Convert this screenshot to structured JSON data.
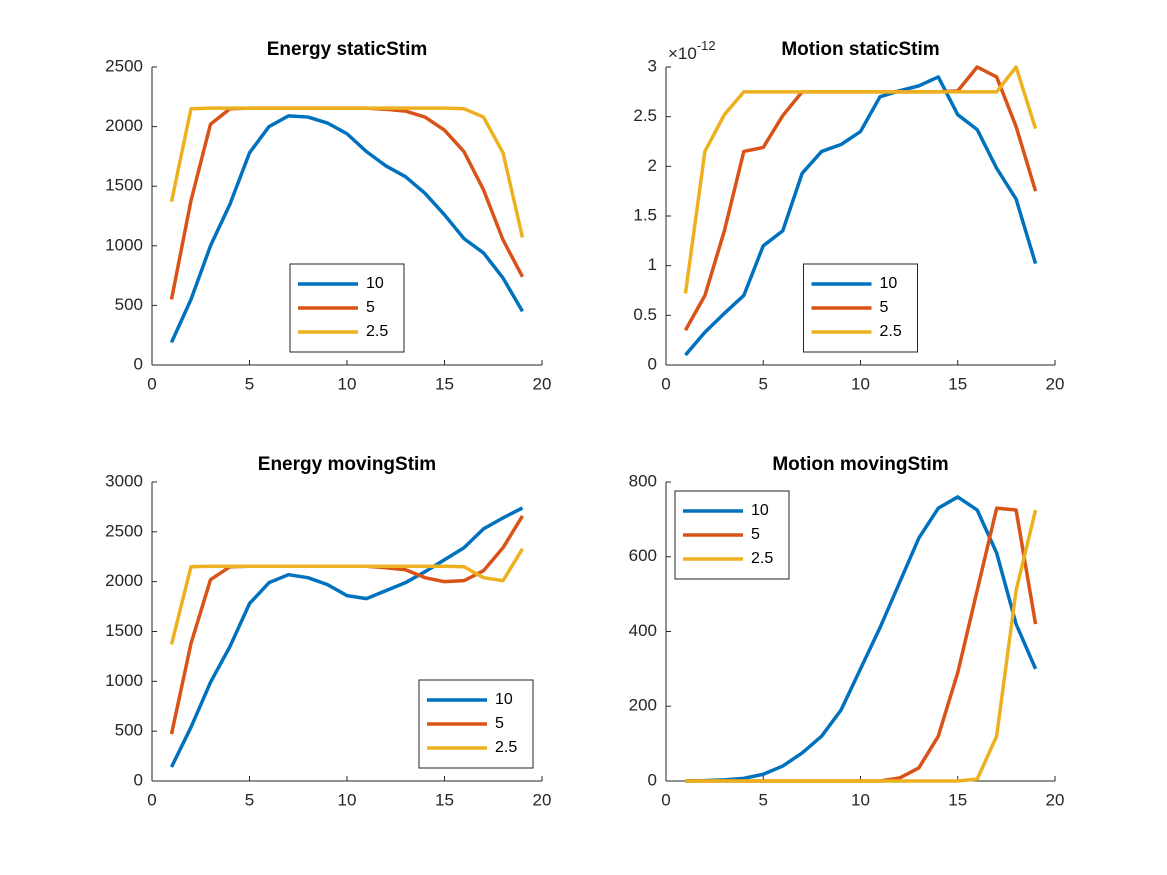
{
  "chart_data": [
    {
      "type": "line",
      "title": "Energy staticStim",
      "x": [
        1,
        2,
        3,
        4,
        5,
        6,
        7,
        8,
        9,
        10,
        11,
        12,
        13,
        14,
        15,
        16,
        17,
        18,
        19
      ],
      "xlim": [
        0,
        20
      ],
      "xticks": [
        0,
        5,
        10,
        15,
        20
      ],
      "ylim": [
        0,
        2500
      ],
      "yticks": [
        0,
        500,
        1000,
        1500,
        2000,
        2500
      ],
      "legend": "south",
      "series": [
        {
          "name": "10",
          "color": "#0072BD",
          "values": [
            190,
            550,
            1000,
            1350,
            1780,
            2000,
            2090,
            2080,
            2030,
            1940,
            1790,
            1670,
            1580,
            1440,
            1260,
            1060,
            940,
            730,
            450
          ]
        },
        {
          "name": "5",
          "color": "#D95319",
          "values": [
            550,
            1380,
            2020,
            2150,
            2155,
            2155,
            2155,
            2155,
            2155,
            2155,
            2155,
            2145,
            2130,
            2080,
            1970,
            1790,
            1470,
            1050,
            740
          ]
        },
        {
          "name": "2.5",
          "color": "#EDB120",
          "values": [
            1370,
            2150,
            2155,
            2155,
            2155,
            2155,
            2155,
            2155,
            2155,
            2155,
            2155,
            2155,
            2155,
            2155,
            2155,
            2150,
            2080,
            1780,
            1070
          ]
        }
      ]
    },
    {
      "type": "line",
      "title": "Motion staticStim",
      "y_multiplier": {
        "base": "×10",
        "exponent": "-12"
      },
      "x": [
        1,
        2,
        3,
        4,
        5,
        6,
        7,
        8,
        9,
        10,
        11,
        12,
        13,
        14,
        15,
        16,
        17,
        18,
        19
      ],
      "xlim": [
        0,
        20
      ],
      "xticks": [
        0,
        5,
        10,
        15,
        20
      ],
      "ylim": [
        0,
        3
      ],
      "yticks": [
        0,
        0.5,
        1,
        1.5,
        2,
        2.5,
        3
      ],
      "legend": "south",
      "series": [
        {
          "name": "10",
          "color": "#0072BD",
          "values": [
            0.1,
            0.33,
            0.52,
            0.7,
            1.2,
            1.35,
            1.93,
            2.15,
            2.22,
            2.35,
            2.7,
            2.76,
            2.81,
            2.9,
            2.52,
            2.37,
            1.98,
            1.67,
            1.02
          ]
        },
        {
          "name": "5",
          "color": "#D95319",
          "values": [
            0.35,
            0.7,
            1.35,
            2.15,
            2.19,
            2.51,
            2.75,
            2.75,
            2.75,
            2.75,
            2.75,
            2.75,
            2.75,
            2.75,
            2.76,
            3.0,
            2.9,
            2.4,
            1.75
          ]
        },
        {
          "name": "2.5",
          "color": "#EDB120",
          "values": [
            0.72,
            2.15,
            2.52,
            2.75,
            2.75,
            2.75,
            2.75,
            2.75,
            2.75,
            2.75,
            2.75,
            2.75,
            2.75,
            2.75,
            2.75,
            2.75,
            2.75,
            3.0,
            2.38
          ]
        }
      ]
    },
    {
      "type": "line",
      "title": "Energy movingStim",
      "x": [
        1,
        2,
        3,
        4,
        5,
        6,
        7,
        8,
        9,
        10,
        11,
        12,
        13,
        14,
        15,
        16,
        17,
        18,
        19
      ],
      "xlim": [
        0,
        20
      ],
      "xticks": [
        0,
        5,
        10,
        15,
        20
      ],
      "ylim": [
        0,
        3000
      ],
      "yticks": [
        0,
        500,
        1000,
        1500,
        2000,
        2500,
        3000
      ],
      "legend": "southeast",
      "series": [
        {
          "name": "10",
          "color": "#0072BD",
          "values": [
            140,
            540,
            990,
            1350,
            1780,
            1990,
            2070,
            2040,
            1970,
            1860,
            1830,
            1910,
            1990,
            2100,
            2220,
            2340,
            2530,
            2640,
            2740
          ]
        },
        {
          "name": "5",
          "color": "#D95319",
          "values": [
            470,
            1380,
            2020,
            2150,
            2155,
            2155,
            2155,
            2155,
            2155,
            2155,
            2155,
            2140,
            2120,
            2040,
            2000,
            2010,
            2110,
            2340,
            2660
          ]
        },
        {
          "name": "2.5",
          "color": "#EDB120",
          "values": [
            1370,
            2150,
            2155,
            2155,
            2155,
            2155,
            2155,
            2155,
            2155,
            2155,
            2155,
            2155,
            2155,
            2155,
            2155,
            2150,
            2040,
            2010,
            2330
          ]
        }
      ]
    },
    {
      "type": "line",
      "title": "Motion movingStim",
      "x": [
        1,
        2,
        3,
        4,
        5,
        6,
        7,
        8,
        9,
        10,
        11,
        12,
        13,
        14,
        15,
        16,
        17,
        18,
        19
      ],
      "xlim": [
        0,
        20
      ],
      "xticks": [
        0,
        5,
        10,
        15,
        20
      ],
      "ylim": [
        0,
        800
      ],
      "yticks": [
        0,
        200,
        400,
        600,
        800
      ],
      "legend": "northwest",
      "series": [
        {
          "name": "10",
          "color": "#0072BD",
          "values": [
            0,
            1,
            3,
            7,
            18,
            40,
            75,
            120,
            190,
            300,
            410,
            530,
            650,
            730,
            760,
            725,
            610,
            420,
            300
          ]
        },
        {
          "name": "5",
          "color": "#D95319",
          "values": [
            0,
            0,
            0,
            0,
            0,
            0,
            0,
            0,
            0,
            0,
            0,
            8,
            35,
            120,
            290,
            510,
            730,
            725,
            420
          ]
        },
        {
          "name": "2.5",
          "color": "#EDB120",
          "values": [
            0,
            0,
            0,
            0,
            0,
            0,
            0,
            0,
            0,
            0,
            0,
            0,
            0,
            0,
            0,
            5,
            120,
            510,
            725
          ]
        }
      ]
    }
  ]
}
